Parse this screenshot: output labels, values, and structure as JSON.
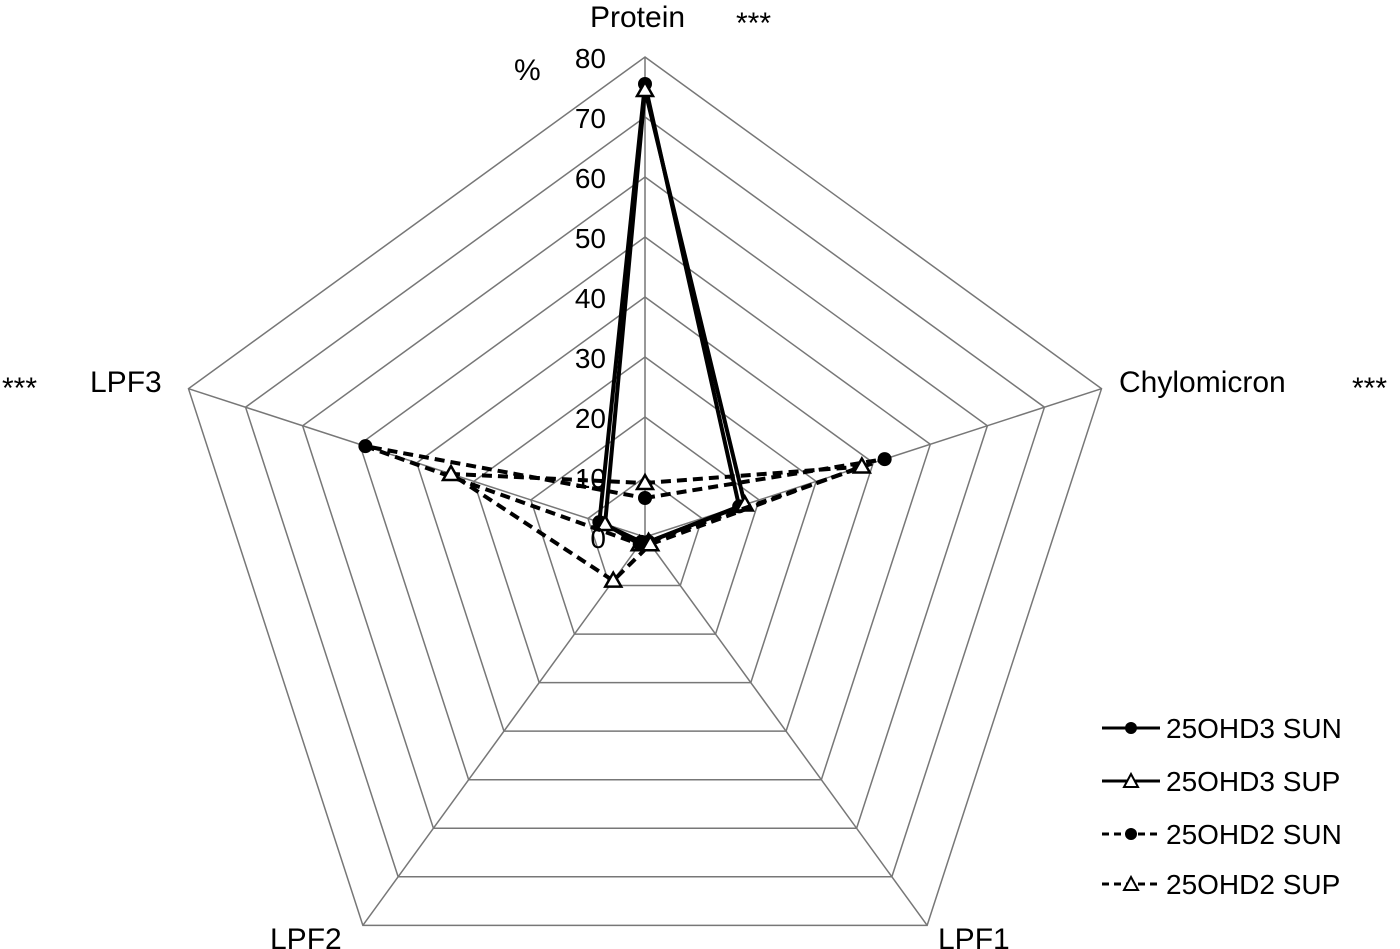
{
  "chart_data": {
    "type": "radar",
    "title": "",
    "unit_label": "%",
    "axes": [
      "Protein",
      "Chylomicron",
      "LPF1",
      "LPF2",
      "LPF3"
    ],
    "significance": {
      "Protein": "***",
      "Chylomicron": "***",
      "LPF1": "",
      "LPF2": "",
      "LPF3": "***"
    },
    "rlim": [
      0,
      80
    ],
    "ticks": [
      0,
      10,
      20,
      30,
      40,
      50,
      60,
      70,
      80
    ],
    "tick_labels": [
      "0",
      "10",
      "20",
      "30",
      "40",
      "50",
      "60",
      "70",
      "80"
    ],
    "grid": true,
    "legend_position": "lower-right",
    "series": [
      {
        "name": "25OHD3 SUN",
        "line": "solid",
        "marker": "filled-circle",
        "values": [
          75.5,
          16.5,
          1,
          1,
          8
        ]
      },
      {
        "name": "25OHD3 SUP",
        "line": "solid",
        "marker": "open-triangle",
        "values": [
          74.5,
          17.5,
          1,
          1.5,
          7
        ]
      },
      {
        "name": "25OHD2 SUN",
        "line": "dashed",
        "marker": "filled-circle",
        "values": [
          6.5,
          42,
          1,
          1.5,
          49
        ]
      },
      {
        "name": "25OHD2 SUP",
        "line": "dashed",
        "marker": "open-triangle",
        "values": [
          9,
          38,
          1.5,
          9,
          34
        ]
      }
    ]
  },
  "labels": {
    "percent": "%",
    "protein": "Protein",
    "protein_sig": "***",
    "chylomicron": "Chylomicron",
    "chylomicron_sig": "***",
    "lpf1": "LPF1",
    "lpf2": "LPF2",
    "lpf3": "LPF3",
    "lpf3_sig": "***"
  },
  "legend": [
    {
      "label": "25OHD3 SUN"
    },
    {
      "label": "25OHD3 SUP"
    },
    {
      "label": "25OHD2 SUN"
    },
    {
      "label": "25OHD2 SUP"
    }
  ],
  "colors": {
    "grid": "#777777",
    "series": "#000000",
    "background": "#ffffff"
  }
}
